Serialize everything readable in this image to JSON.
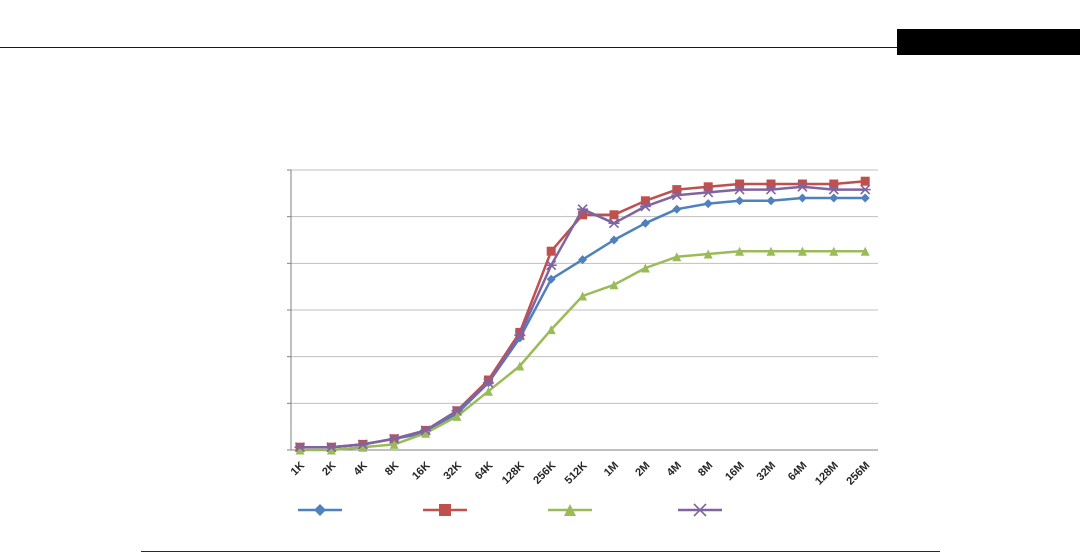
{
  "page": {
    "background": "#ffffff",
    "top_rule_color": "#1a1a1a",
    "bottom_rule_color": "#2a2a2a"
  },
  "redaction_box": {
    "present": true,
    "color": "#000000"
  },
  "chart_data": {
    "type": "line",
    "title": "",
    "xlabel": "",
    "ylabel": "",
    "categories": [
      "1K",
      "2K",
      "4K",
      "8K",
      "16K",
      "32K",
      "64K",
      "128K",
      "256K",
      "512K",
      "1M",
      "2M",
      "4M",
      "8M",
      "16M",
      "32M",
      "64M",
      "128M",
      "256M"
    ],
    "ylim": [
      0,
      100
    ],
    "gridline_count": 7,
    "grid": true,
    "legend_position": "bottom",
    "axis_color": "#808080",
    "grid_color": "#bfbfbf",
    "tick_label_color": "#262626",
    "series": [
      {
        "name": "",
        "marker": "diamond",
        "color": "#4F81BD",
        "values": [
          1,
          1,
          2,
          4,
          6,
          13,
          24,
          40,
          61,
          68,
          75,
          81,
          86,
          88,
          89,
          89,
          90,
          90,
          90
        ]
      },
      {
        "name": "",
        "marker": "square",
        "color": "#C0504D",
        "values": [
          1,
          1,
          2,
          4,
          7,
          14,
          25,
          42,
          71,
          84,
          84,
          89,
          93,
          94,
          95,
          95,
          95,
          95,
          96
        ]
      },
      {
        "name": "",
        "marker": "triangle",
        "color": "#9BBB59",
        "values": [
          0,
          0,
          1,
          2,
          6,
          12,
          21,
          30,
          43,
          55,
          59,
          65,
          69,
          70,
          71,
          71,
          71,
          71,
          71
        ]
      },
      {
        "name": "",
        "marker": "x",
        "color": "#8064A2",
        "values": [
          1,
          1,
          2,
          4,
          7,
          14,
          24,
          41,
          66,
          86,
          81,
          87,
          91,
          92,
          93,
          93,
          94,
          93,
          93
        ]
      }
    ]
  }
}
